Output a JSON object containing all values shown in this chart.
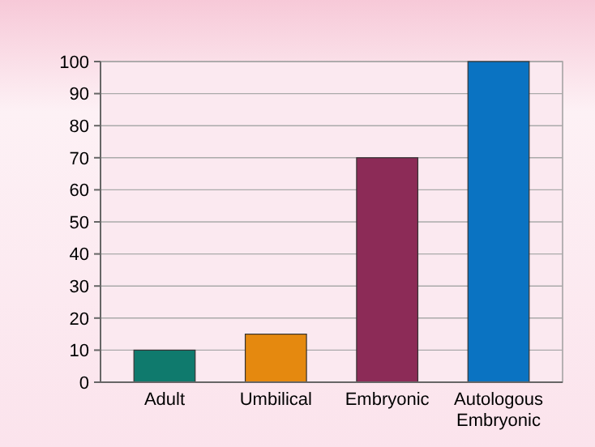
{
  "chart_data": {
    "type": "bar",
    "categories": [
      "Adult",
      "Umbilical",
      "Embryonic",
      "Autologous Embryonic"
    ],
    "values": [
      10,
      15,
      70,
      100
    ],
    "colors": [
      "#0f7a6d",
      "#e5890f",
      "#8c2b57",
      "#0a73c2"
    ],
    "ylim": [
      0,
      100
    ],
    "yticks": [
      0,
      10,
      20,
      30,
      40,
      50,
      60,
      70,
      80,
      90,
      100
    ],
    "grid": "y"
  }
}
